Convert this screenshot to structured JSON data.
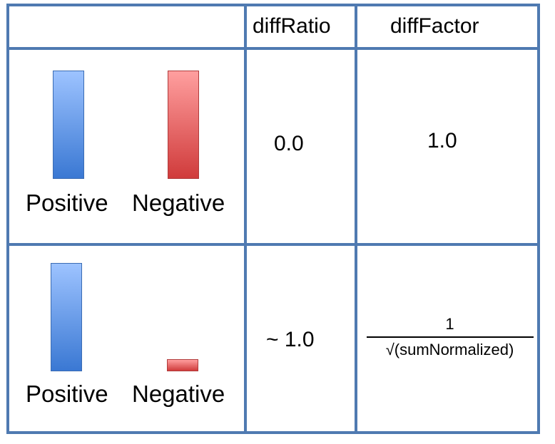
{
  "headers": {
    "diff_ratio": "diffRatio",
    "diff_factor": "diffFactor"
  },
  "rows": [
    {
      "positive_label": "Positive",
      "negative_label": "Negative",
      "positive_level": 1.0,
      "negative_level": 1.0,
      "diff_ratio": "0.0",
      "diff_factor": "1.0"
    },
    {
      "positive_label": "Positive",
      "negative_label": "Negative",
      "positive_level": 1.0,
      "negative_level": 0.1,
      "diff_ratio": "~ 1.0",
      "diff_factor_numerator": "1",
      "diff_factor_denominator": "√(sumNormalized)"
    }
  ],
  "colors": {
    "grid": "#4f7ab1",
    "positive_top": "#9dc3ff",
    "positive_bottom": "#3a78d3",
    "negative_top": "#ff9f9f",
    "negative_bottom": "#d03b3b"
  }
}
